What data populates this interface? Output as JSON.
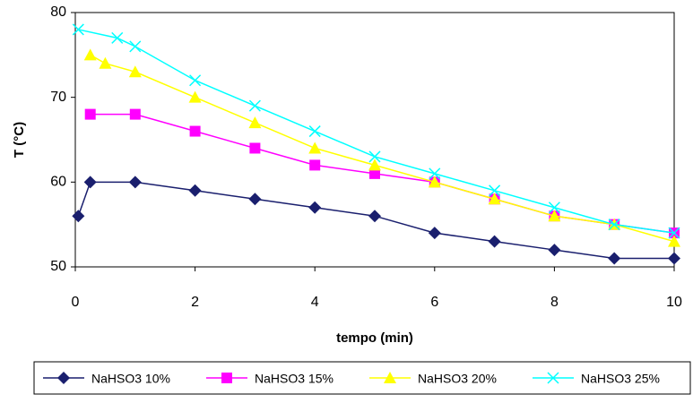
{
  "chart_data": {
    "type": "line",
    "xlabel": "tempo (min)",
    "ylabel": "T (°C)",
    "xlim": [
      0,
      10
    ],
    "xticks": [
      0,
      2,
      4,
      6,
      8,
      10
    ],
    "ylim": [
      50,
      80
    ],
    "yticks": [
      50,
      60,
      70,
      80
    ],
    "grid": false,
    "legend": "bottom",
    "series": [
      {
        "name": "NaHSO3 10%",
        "color": "#1a1f6e",
        "marker": "diamond",
        "x": [
          0.05,
          0.25,
          1,
          2,
          3,
          4,
          5,
          6,
          7,
          8,
          9,
          10
        ],
        "values": [
          56,
          60,
          60,
          59,
          58,
          57,
          56,
          54,
          53,
          52,
          51,
          51
        ]
      },
      {
        "name": "NaHSO3 15%",
        "color": "#ff00ff",
        "marker": "square",
        "x": [
          0.25,
          1,
          2,
          3,
          4,
          5,
          6,
          7,
          8,
          9,
          10
        ],
        "values": [
          68,
          68,
          66,
          64,
          62,
          61,
          60,
          58,
          56,
          55,
          54
        ]
      },
      {
        "name": "NaHSO3 20%",
        "color": "#ffff00",
        "marker": "triangle",
        "x": [
          0.25,
          0.5,
          1,
          2,
          3,
          4,
          5,
          6,
          7,
          8,
          9,
          10
        ],
        "values": [
          75,
          74,
          73,
          70,
          67,
          64,
          62,
          60,
          58,
          56,
          55,
          53
        ]
      },
      {
        "name": "NaHSO3 25%",
        "color": "#00ffff",
        "marker": "x",
        "x": [
          0.05,
          0.7,
          1,
          2,
          3,
          4,
          5,
          6,
          7,
          8,
          9,
          10
        ],
        "values": [
          78,
          77,
          76,
          72,
          69,
          66,
          63,
          61,
          59,
          57,
          55,
          54
        ]
      }
    ]
  }
}
